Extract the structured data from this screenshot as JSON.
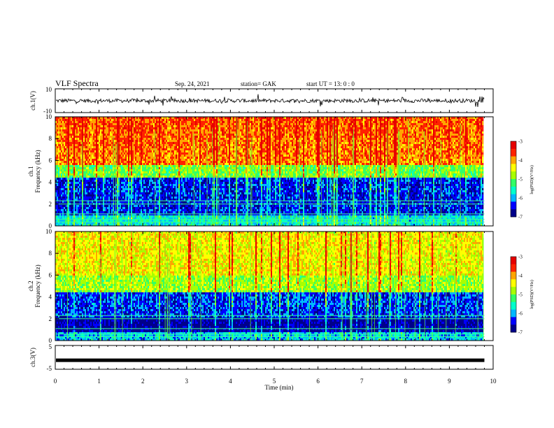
{
  "header": {
    "title": "VLF Spectra",
    "date": "Sep. 24, 2021",
    "station": "station= GAK",
    "start": "start  UT =   13: 0  : 0"
  },
  "chart_data": [
    {
      "type": "line",
      "panel": "ch1-waveform",
      "ylabel": "ch.1(V)",
      "ylim": [
        -10,
        10
      ],
      "yticks": [
        "10",
        "-10"
      ],
      "xlim": [
        0,
        10
      ],
      "series": [
        {
          "values_description_free": true,
          "baseline": 0,
          "amplitude_typical": 2,
          "color": "#000000"
        }
      ]
    },
    {
      "type": "heatmap",
      "panel": "ch1-spectrogram",
      "ylabel": "ch.1",
      "ylabel2": "Frequency  (kHz)",
      "ylim": [
        0,
        10
      ],
      "yticks": [
        "10",
        "8",
        "6",
        "4",
        "2",
        "0"
      ],
      "xlim": [
        0,
        9.8
      ],
      "colorbar": {
        "label": "log(PSD)(V²/Hz)",
        "range": [
          -7,
          -3
        ],
        "ticks": [
          "-3",
          "-4",
          "-5",
          "-6",
          "-7"
        ]
      },
      "colors": [
        "#00008b",
        "#0000ff",
        "#00b7ff",
        "#00ffcc",
        "#33ff66",
        "#a8ff00",
        "#ffff00",
        "#ffa500",
        "#ff2200",
        "#e60000"
      ]
    },
    {
      "type": "heatmap",
      "panel": "ch2-spectrogram",
      "ylabel": "ch.2",
      "ylabel2": "Frequency  (kHz)",
      "ylim": [
        0,
        10
      ],
      "yticks": [
        "10",
        "8",
        "6",
        "4",
        "2",
        "0"
      ],
      "xlim": [
        0,
        9.8
      ],
      "colorbar": {
        "label": "log(PSD)(V²/Hz)",
        "range": [
          -7,
          -3
        ],
        "ticks": [
          "-3",
          "-4",
          "-5",
          "-6",
          "-7"
        ]
      }
    },
    {
      "type": "line",
      "panel": "ch3-waveform",
      "ylabel": "ch.3(V)",
      "ylim": [
        -5,
        5
      ],
      "yticks": [
        "5",
        "-5"
      ],
      "xlim": [
        0,
        10
      ],
      "series": [
        {
          "constant": -1.2,
          "color": "#000000"
        }
      ]
    }
  ],
  "xaxis": {
    "label": "Time  (min)",
    "ticks": [
      "0",
      "1",
      "2",
      "3",
      "4",
      "5",
      "6",
      "7",
      "8",
      "9",
      "10"
    ],
    "range": [
      0,
      10
    ]
  }
}
